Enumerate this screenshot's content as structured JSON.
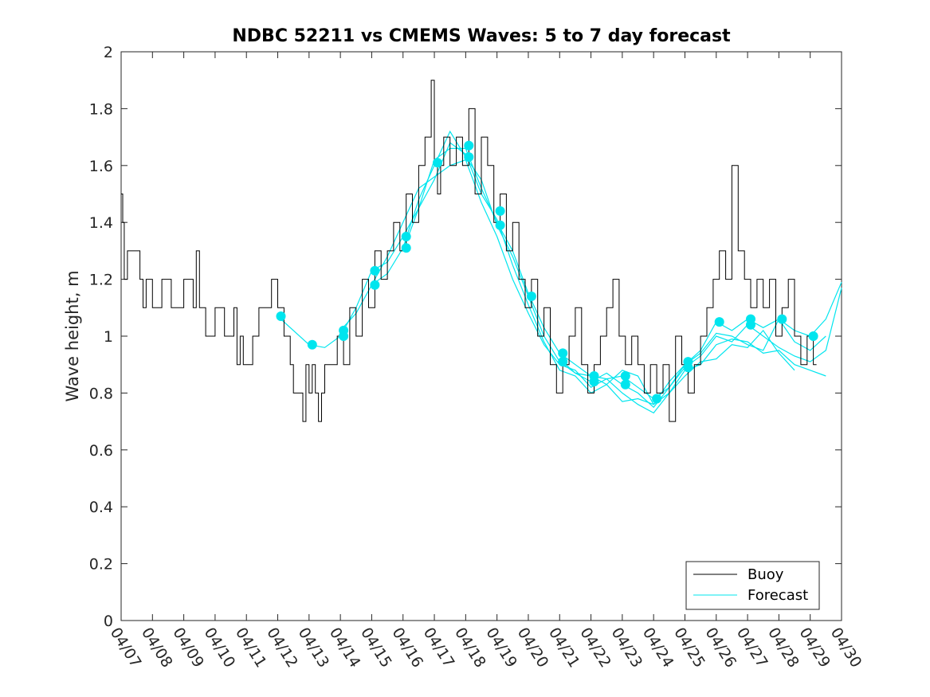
{
  "chart_data": {
    "type": "line",
    "title": "NDBC 52211 vs CMEMS Waves: 5 to 7 day forecast",
    "ylabel": "Wave height, m",
    "xlabel": "",
    "xlim": [
      0,
      23
    ],
    "ylim": [
      0,
      2
    ],
    "yticks": [
      0,
      0.2,
      0.4,
      0.6,
      0.8,
      1,
      1.2,
      1.4,
      1.6,
      1.8,
      2
    ],
    "ytick_labels": [
      "0",
      "0.2",
      "0.4",
      "0.6",
      "0.8",
      "1",
      "1.2",
      "1.4",
      "1.6",
      "1.8",
      "2"
    ],
    "xtick_labels": [
      "04/07",
      "04/08",
      "04/09",
      "04/10",
      "04/11",
      "04/12",
      "04/13",
      "04/14",
      "04/15",
      "04/16",
      "04/17",
      "04/18",
      "04/19",
      "04/20",
      "04/21",
      "04/22",
      "04/23",
      "04/24",
      "04/25",
      "04/26",
      "04/27",
      "04/28",
      "04/29",
      "04/30"
    ],
    "grid": false,
    "legend_position": "bottom-right",
    "colors": {
      "buoy": "#000000",
      "forecast": "#00e5ee"
    },
    "series": [
      {
        "name": "Buoy",
        "x": [
          0,
          0.05,
          0.1,
          0.2,
          0.5,
          0.6,
          0.7,
          0.8,
          1.0,
          1.3,
          1.6,
          2.0,
          2.3,
          2.4,
          2.5,
          2.6,
          2.7,
          3.0,
          3.3,
          3.6,
          3.7,
          3.8,
          3.9,
          4.2,
          4.4,
          4.6,
          4.8,
          5.0,
          5.2,
          5.4,
          5.5,
          5.6,
          5.8,
          5.9,
          6.0,
          6.1,
          6.2,
          6.3,
          6.4,
          6.5,
          6.7,
          6.9,
          7.1,
          7.3,
          7.5,
          7.7,
          7.9,
          8.1,
          8.3,
          8.5,
          8.7,
          8.9,
          9.1,
          9.3,
          9.5,
          9.7,
          9.9,
          10.0,
          10.1,
          10.2,
          10.3,
          10.5,
          10.7,
          10.9,
          11.1,
          11.3,
          11.5,
          11.7,
          11.9,
          12.1,
          12.3,
          12.5,
          12.7,
          12.9,
          13.1,
          13.3,
          13.5,
          13.7,
          13.9,
          14.1,
          14.3,
          14.5,
          14.7,
          14.9,
          15.1,
          15.3,
          15.5,
          15.7,
          15.9,
          16.1,
          16.3,
          16.5,
          16.7,
          16.9,
          17.1,
          17.3,
          17.5,
          17.7,
          17.9,
          18.1,
          18.3,
          18.5,
          18.7,
          18.9,
          19.1,
          19.3,
          19.5,
          19.7,
          19.9,
          20.1,
          20.3,
          20.5,
          20.7,
          20.9,
          21.1,
          21.3,
          21.5,
          21.7,
          21.9,
          22.1,
          22.2
        ],
        "y": [
          1.5,
          1.4,
          1.2,
          1.3,
          1.3,
          1.2,
          1.1,
          1.2,
          1.1,
          1.2,
          1.1,
          1.2,
          1.1,
          1.3,
          1.1,
          1.1,
          1.0,
          1.1,
          1.0,
          1.1,
          0.9,
          1.0,
          0.9,
          1.0,
          1.1,
          1.1,
          1.2,
          1.1,
          1.0,
          0.9,
          0.8,
          0.8,
          0.7,
          0.9,
          0.8,
          0.9,
          0.8,
          0.7,
          0.8,
          0.9,
          0.9,
          1.0,
          0.9,
          1.1,
          1.0,
          1.2,
          1.1,
          1.3,
          1.2,
          1.3,
          1.4,
          1.3,
          1.5,
          1.4,
          1.6,
          1.7,
          1.9,
          1.6,
          1.5,
          1.6,
          1.7,
          1.6,
          1.7,
          1.6,
          1.8,
          1.5,
          1.7,
          1.6,
          1.4,
          1.5,
          1.3,
          1.4,
          1.2,
          1.1,
          1.2,
          1.0,
          1.1,
          0.9,
          0.8,
          0.9,
          1.0,
          1.1,
          0.9,
          0.8,
          0.9,
          1.0,
          1.1,
          1.2,
          1.0,
          0.9,
          1.0,
          0.9,
          0.8,
          0.9,
          0.8,
          0.9,
          0.7,
          1.0,
          0.9,
          0.8,
          0.9,
          1.0,
          1.1,
          1.2,
          1.3,
          1.2,
          1.6,
          1.3,
          1.2,
          1.1,
          1.2,
          1.1,
          1.2,
          1.0,
          1.1,
          1.2,
          1.0,
          0.9,
          1.0,
          0.9,
          0.9
        ]
      },
      {
        "name": "Forecast",
        "lines": [
          {
            "x": [
              5.0,
              5.5,
              6.0,
              6.5,
              7.0,
              7.5,
              8.0,
              8.5,
              9.0,
              9.5,
              10.0,
              10.5,
              11.0,
              11.5,
              12.0,
              12.5,
              13.0,
              13.5,
              14.0,
              14.5,
              15.0,
              15.5,
              16.0,
              16.5,
              17.0,
              17.5,
              18.0,
              18.5,
              19.0,
              19.5,
              20.0,
              20.5,
              21.0,
              21.5,
              22.0,
              22.5,
              23.0
            ],
            "y": [
              1.07,
              1.02,
              0.97,
              0.96,
              1.0,
              1.1,
              1.23,
              1.26,
              1.35,
              1.45,
              1.62,
              1.66,
              1.66,
              1.52,
              1.4,
              1.3,
              1.15,
              1.03,
              0.94,
              0.9,
              0.86,
              0.85,
              0.86,
              0.82,
              0.78,
              0.82,
              0.9,
              0.95,
              1.05,
              1.02,
              1.06,
              1.03,
              1.06,
              1.02,
              1.0,
              1.06,
              1.19
            ]
          },
          {
            "x": [
              7.0,
              7.5,
              8.0,
              8.5,
              9.0,
              9.5,
              10.0,
              10.5,
              11.0,
              11.5,
              12.0,
              12.5,
              13.0,
              13.5,
              14.0,
              14.5,
              15.0,
              15.5,
              16.0,
              16.5,
              17.0,
              17.5,
              18.0,
              18.5,
              19.0,
              19.5,
              20.0,
              20.5,
              21.0,
              21.5,
              22.0,
              22.5,
              23.0
            ],
            "y": [
              1.02,
              1.08,
              1.18,
              1.22,
              1.31,
              1.48,
              1.6,
              1.72,
              1.63,
              1.55,
              1.39,
              1.28,
              1.14,
              1.0,
              0.91,
              0.87,
              0.84,
              0.87,
              0.83,
              0.8,
              0.75,
              0.82,
              0.89,
              0.93,
              1.0,
              0.98,
              1.04,
              1.0,
              0.96,
              0.93,
              0.91,
              0.95,
              1.17
            ]
          },
          {
            "x": [
              8.0,
              8.5,
              9.0,
              9.5,
              10.0,
              10.5,
              11.0,
              11.5,
              12.0,
              12.5,
              13.0,
              13.5,
              14.0,
              14.5,
              15.0,
              15.5,
              16.0,
              16.5,
              17.0,
              17.5,
              18.0,
              18.5,
              19.0,
              19.5,
              20.0,
              20.5,
              21.0,
              21.5,
              22.0,
              22.5
            ],
            "y": [
              1.18,
              1.28,
              1.4,
              1.52,
              1.56,
              1.6,
              1.62,
              1.47,
              1.35,
              1.2,
              1.08,
              0.97,
              0.9,
              0.88,
              0.82,
              0.85,
              0.8,
              0.76,
              0.73,
              0.8,
              0.88,
              0.9,
              0.97,
              0.99,
              0.98,
              0.94,
              0.95,
              0.9,
              0.88,
              0.86
            ]
          },
          {
            "x": [
              9.0,
              9.5,
              10.0,
              10.5,
              11.0,
              11.5,
              12.0,
              12.5,
              13.0,
              13.5,
              14.0,
              14.5,
              15.0,
              15.5,
              16.0,
              16.5,
              17.0,
              17.5,
              18.0,
              18.5,
              19.0,
              19.5,
              20.0,
              20.5,
              21.0,
              21.5,
              22.0,
              22.5
            ],
            "y": [
              1.3,
              1.45,
              1.55,
              1.68,
              1.64,
              1.5,
              1.41,
              1.25,
              1.11,
              0.98,
              0.88,
              0.86,
              0.8,
              0.83,
              0.77,
              0.78,
              0.76,
              0.84,
              0.9,
              0.94,
              1.01,
              1.0,
              0.97,
              0.95,
              1.06,
              0.98,
              0.95,
              1.0
            ]
          },
          {
            "x": [
              14.0,
              14.5,
              15.0,
              15.5,
              16.0,
              16.5,
              17.0,
              17.5,
              18.0,
              18.5,
              19.0,
              19.5,
              20.0,
              20.5,
              21.0,
              21.5
            ],
            "y": [
              0.92,
              0.87,
              0.86,
              0.83,
              0.88,
              0.86,
              0.76,
              0.8,
              0.86,
              0.91,
              0.92,
              0.97,
              0.96,
              1.02,
              0.94,
              0.88
            ]
          }
        ],
        "markers": {
          "x": [
            5.1,
            6.1,
            7.1,
            7.1,
            8.1,
            8.1,
            9.1,
            9.1,
            10.1,
            11.1,
            11.1,
            12.1,
            12.1,
            13.1,
            14.1,
            14.1,
            15.1,
            15.1,
            16.1,
            16.1,
            17.1,
            18.1,
            18.1,
            19.1,
            20.1,
            20.1,
            21.1,
            22.1
          ],
          "y": [
            1.07,
            0.97,
            1.02,
            1.0,
            1.23,
            1.18,
            1.35,
            1.31,
            1.61,
            1.67,
            1.63,
            1.44,
            1.39,
            1.14,
            0.94,
            0.91,
            0.86,
            0.84,
            0.86,
            0.83,
            0.78,
            0.91,
            0.89,
            1.05,
            1.06,
            1.04,
            1.06,
            1.0
          ]
        }
      }
    ]
  }
}
